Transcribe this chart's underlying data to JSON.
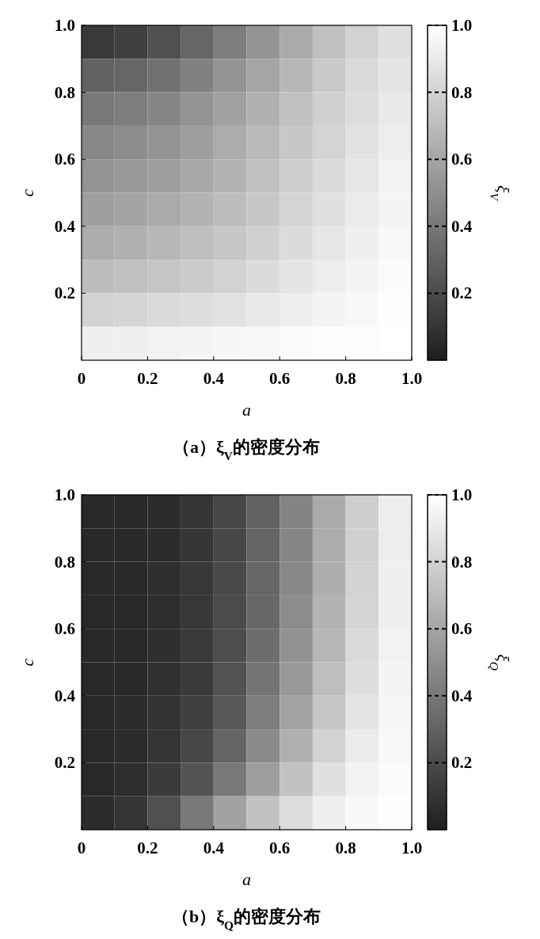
{
  "chart_data": [
    {
      "type": "heatmap",
      "title": "（a）ξ$_{V}$的密度分布",
      "xlabel": "a",
      "ylabel": "c",
      "clabel": "ξ$_{V}$",
      "x": [
        0.05,
        0.15,
        0.25,
        0.35,
        0.45,
        0.55,
        0.65,
        0.75,
        0.85,
        0.95
      ],
      "y": [
        0.95,
        0.85,
        0.75,
        0.65,
        0.55,
        0.45,
        0.35,
        0.25,
        0.15,
        0.05
      ],
      "cells": [
        [
          0.12,
          0.15,
          0.22,
          0.32,
          0.42,
          0.52,
          0.62,
          0.72,
          0.8,
          0.86
        ],
        [
          0.3,
          0.32,
          0.37,
          0.44,
          0.52,
          0.6,
          0.68,
          0.76,
          0.83,
          0.88
        ],
        [
          0.4,
          0.42,
          0.46,
          0.52,
          0.58,
          0.65,
          0.72,
          0.79,
          0.85,
          0.9
        ],
        [
          0.47,
          0.49,
          0.52,
          0.57,
          0.63,
          0.69,
          0.75,
          0.81,
          0.87,
          0.92
        ],
        [
          0.52,
          0.54,
          0.57,
          0.61,
          0.66,
          0.72,
          0.78,
          0.84,
          0.89,
          0.94
        ],
        [
          0.57,
          0.59,
          0.62,
          0.66,
          0.7,
          0.75,
          0.81,
          0.86,
          0.91,
          0.95
        ],
        [
          0.63,
          0.65,
          0.68,
          0.71,
          0.75,
          0.79,
          0.84,
          0.89,
          0.93,
          0.97
        ],
        [
          0.7,
          0.72,
          0.74,
          0.77,
          0.8,
          0.84,
          0.88,
          0.92,
          0.95,
          0.98
        ],
        [
          0.8,
          0.81,
          0.83,
          0.85,
          0.87,
          0.9,
          0.93,
          0.95,
          0.97,
          0.99
        ],
        [
          0.93,
          0.93,
          0.94,
          0.95,
          0.96,
          0.97,
          0.98,
          0.99,
          0.99,
          1.0
        ]
      ],
      "xlim": [
        0,
        1
      ],
      "ylim": [
        0,
        1
      ],
      "xticks": [
        0,
        0.2,
        0.4,
        0.6,
        0.8,
        {
          "value": 1,
          "label": "1.0"
        }
      ],
      "yticks": [
        0.2,
        0.4,
        0.6,
        0.8,
        {
          "value": 1,
          "label": "1.0"
        }
      ],
      "clim": [
        0,
        1
      ],
      "cticks": [
        0.2,
        0.4,
        0.6,
        0.8,
        {
          "value": 1,
          "label": "1.0"
        }
      ]
    },
    {
      "type": "heatmap",
      "title": "（b）ξ$_{Q}$的密度分布",
      "xlabel": "a",
      "ylabel": "c",
      "clabel": "ξ$_{Q}$",
      "x": [
        0.05,
        0.15,
        0.25,
        0.35,
        0.45,
        0.55,
        0.65,
        0.75,
        0.85,
        0.95
      ],
      "y": [
        0.95,
        0.85,
        0.75,
        0.65,
        0.55,
        0.45,
        0.35,
        0.25,
        0.15,
        0.05
      ],
      "cells": [
        [
          0.05,
          0.05,
          0.06,
          0.1,
          0.18,
          0.3,
          0.45,
          0.62,
          0.78,
          0.92
        ],
        [
          0.05,
          0.05,
          0.06,
          0.1,
          0.18,
          0.31,
          0.46,
          0.63,
          0.79,
          0.92
        ],
        [
          0.05,
          0.05,
          0.07,
          0.11,
          0.19,
          0.32,
          0.47,
          0.64,
          0.8,
          0.93
        ],
        [
          0.05,
          0.05,
          0.07,
          0.11,
          0.2,
          0.33,
          0.49,
          0.66,
          0.81,
          0.93
        ],
        [
          0.05,
          0.05,
          0.07,
          0.12,
          0.21,
          0.35,
          0.51,
          0.68,
          0.83,
          0.94
        ],
        [
          0.05,
          0.05,
          0.08,
          0.13,
          0.23,
          0.38,
          0.54,
          0.71,
          0.85,
          0.95
        ],
        [
          0.05,
          0.06,
          0.09,
          0.15,
          0.26,
          0.42,
          0.59,
          0.75,
          0.88,
          0.96
        ],
        [
          0.05,
          0.06,
          0.1,
          0.18,
          0.31,
          0.48,
          0.65,
          0.8,
          0.91,
          0.97
        ],
        [
          0.05,
          0.07,
          0.13,
          0.24,
          0.4,
          0.57,
          0.73,
          0.86,
          0.94,
          0.98
        ],
        [
          0.06,
          0.1,
          0.22,
          0.4,
          0.58,
          0.73,
          0.85,
          0.93,
          0.97,
          0.99
        ]
      ],
      "xlim": [
        0,
        1
      ],
      "ylim": [
        0,
        1
      ],
      "xticks": [
        0,
        0.2,
        0.4,
        0.6,
        0.8,
        {
          "value": 1,
          "label": "1.0"
        }
      ],
      "yticks": [
        0.2,
        0.4,
        0.6,
        0.8,
        {
          "value": 1,
          "label": "1.0"
        }
      ],
      "clim": [
        0,
        1
      ],
      "cticks": [
        0.2,
        0.4,
        0.6,
        0.8,
        {
          "value": 1,
          "label": "1.0"
        }
      ]
    }
  ]
}
